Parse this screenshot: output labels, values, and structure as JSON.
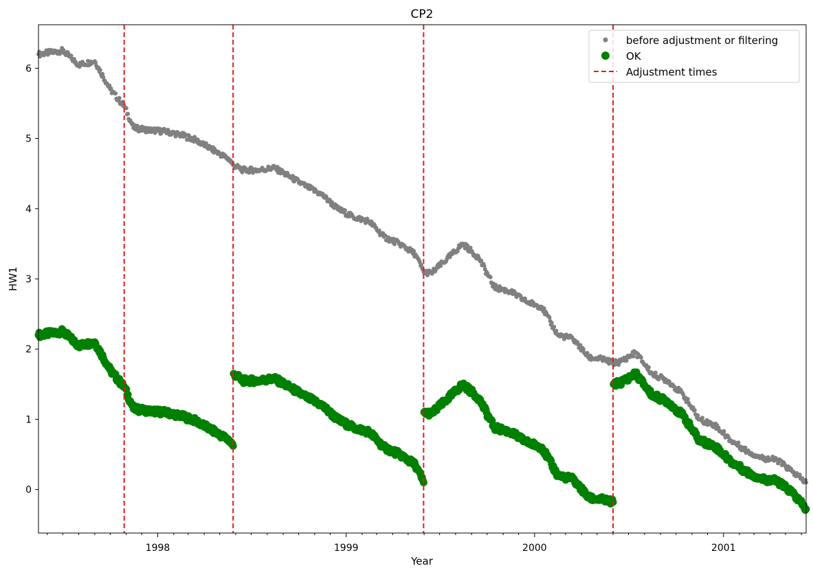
{
  "chart_data": {
    "type": "scatter",
    "title": "CP2",
    "xlabel": "Year",
    "ylabel": "HW1",
    "xlim": [
      "1997-05-15",
      "2001-06-10"
    ],
    "ylim": [
      -0.62,
      6.62
    ],
    "x_ticks": [
      "1998",
      "1999",
      "2000",
      "2001"
    ],
    "y_ticks": [
      0,
      1,
      2,
      3,
      4,
      5,
      6
    ],
    "grid": false,
    "legend_position": "top-right",
    "legend": [
      "before adjustment or filtering",
      "OK",
      "Adjustment times"
    ],
    "colors": {
      "before": "#808080",
      "ok": "#008000",
      "adjust": "#e31a1c"
    },
    "series": [
      {
        "name": "before adjustment or filtering",
        "style": "small-dots",
        "points": [
          [
            "1997-05-15",
            6.2
          ],
          [
            "1997-07-01",
            6.25
          ],
          [
            "1997-08-01",
            6.05
          ],
          [
            "1997-09-01",
            6.1
          ],
          [
            "1997-10-01",
            5.7
          ],
          [
            "1997-10-29",
            5.45
          ],
          [
            "1997-11-15",
            5.15
          ],
          [
            "1997-12-15",
            5.12
          ],
          [
            "1998-01-15",
            5.1
          ],
          [
            "1998-02-15",
            5.05
          ],
          [
            "1998-03-15",
            4.98
          ],
          [
            "1998-04-15",
            4.85
          ],
          [
            "1998-05-20",
            4.7
          ],
          [
            "1998-05-27",
            4.62
          ],
          [
            "1998-06-15",
            4.55
          ],
          [
            "1998-07-15",
            4.55
          ],
          [
            "1998-08-15",
            4.58
          ],
          [
            "1998-09-15",
            4.45
          ],
          [
            "1998-10-15",
            4.32
          ],
          [
            "1998-11-15",
            4.2
          ],
          [
            "1998-12-15",
            4.0
          ],
          [
            "1999-01-15",
            3.88
          ],
          [
            "1999-02-15",
            3.82
          ],
          [
            "1999-03-15",
            3.6
          ],
          [
            "1999-04-15",
            3.5
          ],
          [
            "1999-05-15",
            3.35
          ],
          [
            "1999-05-31",
            3.1
          ],
          [
            "1999-06-15",
            3.08
          ],
          [
            "1999-07-15",
            3.28
          ],
          [
            "1999-08-15",
            3.5
          ],
          [
            "1999-09-15",
            3.3
          ],
          [
            "1999-10-15",
            2.88
          ],
          [
            "1999-11-15",
            2.82
          ],
          [
            "1999-12-15",
            2.68
          ],
          [
            "2000-01-15",
            2.6
          ],
          [
            "2000-02-15",
            2.2
          ],
          [
            "2000-03-15",
            2.15
          ],
          [
            "2000-04-15",
            1.88
          ],
          [
            "2000-05-15",
            1.85
          ],
          [
            "2000-06-01",
            1.8
          ],
          [
            "2000-06-15",
            1.82
          ],
          [
            "2000-07-15",
            1.95
          ],
          [
            "2000-08-15",
            1.65
          ],
          [
            "2000-09-15",
            1.55
          ],
          [
            "2000-10-15",
            1.35
          ],
          [
            "2000-11-15",
            1.0
          ],
          [
            "2000-12-15",
            0.92
          ],
          [
            "2001-01-15",
            0.7
          ],
          [
            "2001-02-15",
            0.55
          ],
          [
            "2001-03-15",
            0.45
          ],
          [
            "2001-04-15",
            0.42
          ],
          [
            "2001-05-15",
            0.25
          ],
          [
            "2001-06-10",
            0.1
          ]
        ]
      },
      {
        "name": "OK",
        "style": "large-dots",
        "points": [
          [
            "1997-05-15",
            2.2
          ],
          [
            "1997-07-01",
            2.25
          ],
          [
            "1997-08-01",
            2.05
          ],
          [
            "1997-09-01",
            2.1
          ],
          [
            "1997-10-01",
            1.7
          ],
          [
            "1997-10-29",
            1.45
          ],
          [
            "1997-11-15",
            1.15
          ],
          [
            "1997-12-15",
            1.12
          ],
          [
            "1998-01-15",
            1.1
          ],
          [
            "1998-02-15",
            1.05
          ],
          [
            "1998-03-15",
            0.98
          ],
          [
            "1998-04-15",
            0.85
          ],
          [
            "1998-05-20",
            0.7
          ],
          [
            "1998-05-27",
            0.62
          ],
          [
            "1998-05-28",
            1.65
          ],
          [
            "1998-06-15",
            1.55
          ],
          [
            "1998-07-15",
            1.55
          ],
          [
            "1998-08-15",
            1.58
          ],
          [
            "1998-09-15",
            1.45
          ],
          [
            "1998-10-15",
            1.32
          ],
          [
            "1998-11-15",
            1.2
          ],
          [
            "1998-12-15",
            1.0
          ],
          [
            "1999-01-15",
            0.88
          ],
          [
            "1999-02-15",
            0.82
          ],
          [
            "1999-03-15",
            0.6
          ],
          [
            "1999-04-15",
            0.5
          ],
          [
            "1999-05-15",
            0.35
          ],
          [
            "1999-05-31",
            0.1
          ],
          [
            "1999-06-01",
            1.1
          ],
          [
            "1999-06-15",
            1.08
          ],
          [
            "1999-07-15",
            1.28
          ],
          [
            "1999-08-15",
            1.5
          ],
          [
            "1999-09-15",
            1.3
          ],
          [
            "1999-10-15",
            0.88
          ],
          [
            "1999-11-15",
            0.82
          ],
          [
            "1999-12-15",
            0.68
          ],
          [
            "2000-01-15",
            0.6
          ],
          [
            "2000-02-15",
            0.2
          ],
          [
            "2000-03-15",
            0.15
          ],
          [
            "2000-04-15",
            -0.12
          ],
          [
            "2000-05-15",
            -0.15
          ],
          [
            "2000-06-01",
            -0.18
          ],
          [
            "2000-06-02",
            1.5
          ],
          [
            "2000-06-15",
            1.52
          ],
          [
            "2000-07-15",
            1.65
          ],
          [
            "2000-08-15",
            1.35
          ],
          [
            "2000-09-15",
            1.25
          ],
          [
            "2000-10-15",
            1.05
          ],
          [
            "2000-11-15",
            0.7
          ],
          [
            "2000-12-15",
            0.62
          ],
          [
            "2001-01-15",
            0.4
          ],
          [
            "2001-02-15",
            0.25
          ],
          [
            "2001-03-15",
            0.15
          ],
          [
            "2001-04-15",
            0.12
          ],
          [
            "2001-05-15",
            -0.05
          ],
          [
            "2001-06-10",
            -0.28
          ]
        ]
      }
    ],
    "adjustment_times": [
      "1997-10-28",
      "1998-05-27",
      "1999-05-31",
      "2000-06-01"
    ]
  }
}
